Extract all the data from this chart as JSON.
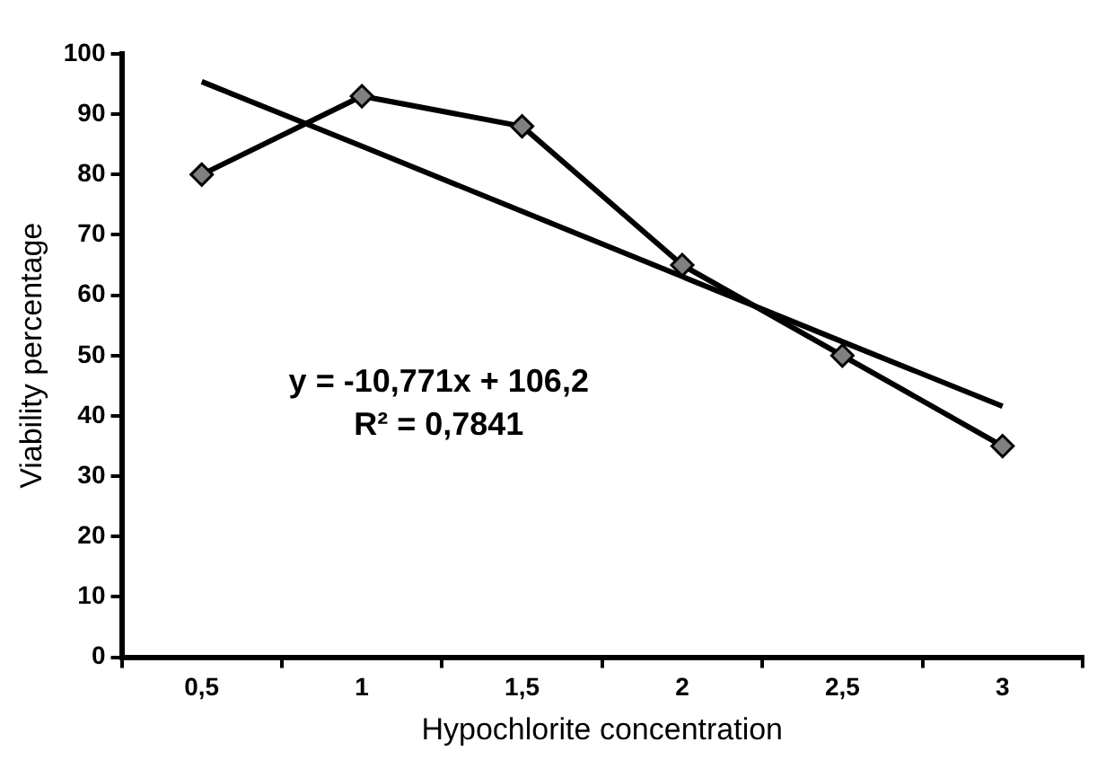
{
  "chart_data": {
    "type": "line",
    "xlabel": "Hypochlorite concentration",
    "ylabel": "Viability percentage",
    "categories": [
      "0,5",
      "1",
      "1,5",
      "2",
      "2,5",
      "3"
    ],
    "series": [
      {
        "color": "#000000",
        "values": [
          80,
          93,
          88,
          65,
          50,
          35
        ],
        "marker": "diamond"
      },
      {
        "type": "line",
        "color": "#000000",
        "values": [
          95.4,
          84.7,
          73.9,
          63.1,
          52.3,
          41.6
        ],
        "marker": "none"
      }
    ],
    "ylim": [
      0,
      100
    ],
    "yticks": [
      0,
      10,
      20,
      30,
      40,
      50,
      60,
      70,
      80,
      90,
      100
    ],
    "grid": false,
    "legend": false,
    "annotations": [
      "y = -10,771x + 106,2",
      "R² = 0,7841"
    ]
  }
}
